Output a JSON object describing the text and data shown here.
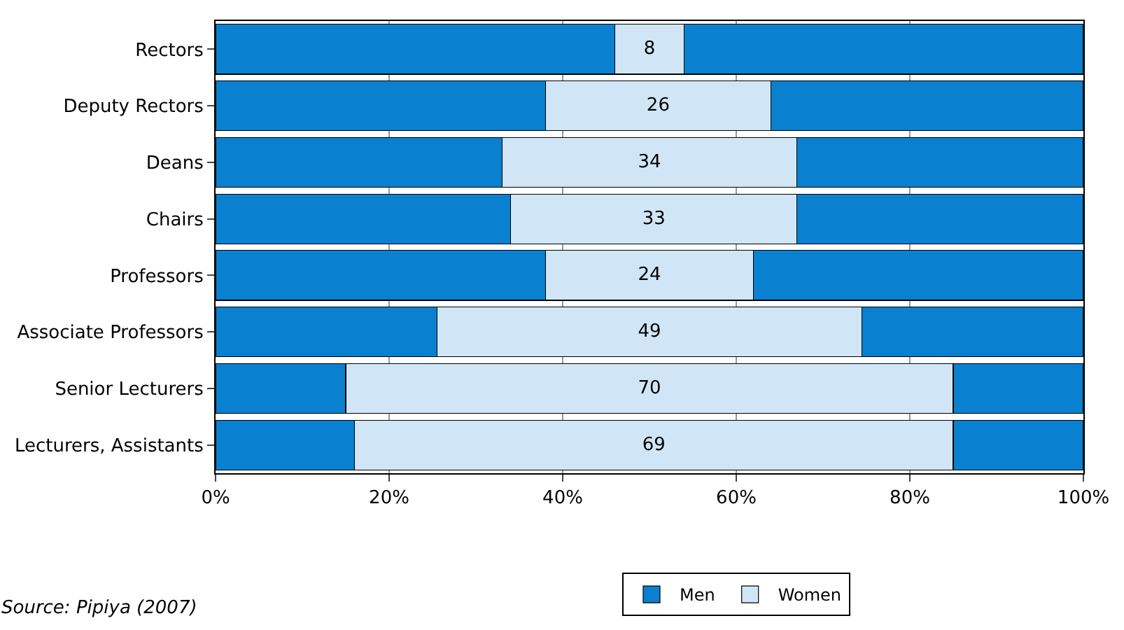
{
  "chart_data": {
    "type": "bar",
    "orientation": "horizontal",
    "stacked": true,
    "categories": [
      "Rectors",
      "Deputy Rectors",
      "Deans",
      "Chairs",
      "Professors",
      "Associate Professors",
      "Senior Lecturers",
      "Lecturers, Assistants"
    ],
    "series": [
      {
        "name": "Men",
        "color": "#0a80d0",
        "values": [
          46,
          38,
          33,
          34,
          38,
          25.5,
          15,
          16
        ]
      },
      {
        "name": "Women",
        "color": "#d0e6f7",
        "values": [
          8,
          26,
          34,
          33,
          24,
          49,
          70,
          69
        ],
        "value_labels": [
          "8",
          "26",
          "34",
          "33",
          "24",
          "49",
          "70",
          "69"
        ]
      },
      {
        "color": "#0a80d0",
        "values": [
          46,
          36,
          33,
          33,
          38,
          25.5,
          15,
          15
        ]
      }
    ],
    "xlim": [
      0,
      100
    ],
    "xticks": [
      {
        "value": 0,
        "label": "0%"
      },
      {
        "value": 20,
        "label": "20%"
      },
      {
        "value": 40,
        "label": "40%"
      },
      {
        "value": 60,
        "label": "60%"
      },
      {
        "value": 80,
        "label": "80%"
      },
      {
        "value": 100,
        "label": "100%"
      }
    ],
    "grid": "x",
    "legend": "bottom",
    "annotations": [
      "Source: Pipiya (2007)"
    ]
  }
}
